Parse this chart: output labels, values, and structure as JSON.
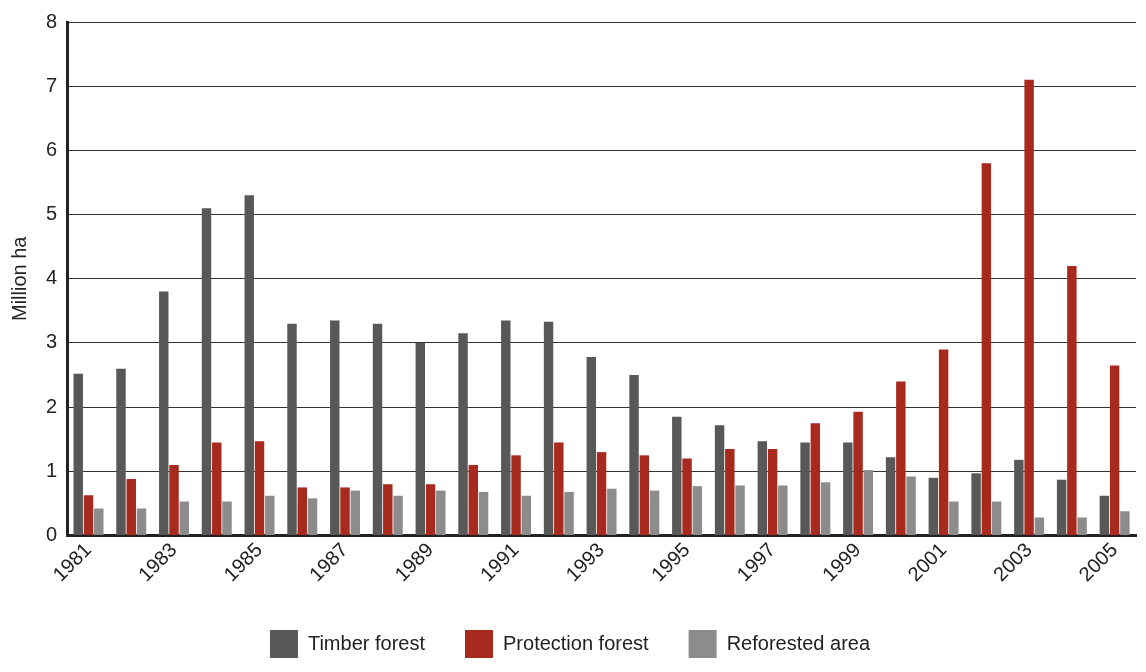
{
  "chart_data": {
    "type": "bar",
    "ylabel": "Million ha",
    "categories": [
      "1981",
      null,
      "1983",
      null,
      "1985",
      null,
      "1987",
      null,
      "1989",
      null,
      "1991",
      null,
      "1993",
      null,
      "1995",
      null,
      "1997",
      null,
      "1999",
      null,
      "2001",
      null,
      "2003",
      null,
      "2005"
    ],
    "series": [
      {
        "name": "Timber forest",
        "color": "#585858",
        "values": [
          2.52,
          2.6,
          3.8,
          5.1,
          5.3,
          3.3,
          3.35,
          3.3,
          3.0,
          3.15,
          3.35,
          3.33,
          2.78,
          2.5,
          1.85,
          1.72,
          1.47,
          1.45,
          1.45,
          1.22,
          0.9,
          0.97,
          1.18,
          0.87,
          0.62
        ]
      },
      {
        "name": "Protection forest",
        "color": "#a82a1e",
        "values": [
          0.63,
          0.88,
          1.1,
          1.45,
          1.47,
          0.75,
          0.75,
          0.8,
          0.8,
          1.1,
          1.25,
          1.45,
          1.3,
          1.25,
          1.2,
          1.35,
          1.35,
          1.75,
          1.93,
          2.4,
          2.9,
          5.8,
          7.1,
          4.2,
          2.65
        ]
      },
      {
        "name": "Reforested area",
        "color": "#8c8c8c",
        "values": [
          0.42,
          0.42,
          0.53,
          0.53,
          0.62,
          0.58,
          0.7,
          0.62,
          0.7,
          0.68,
          0.62,
          0.68,
          0.73,
          0.7,
          0.77,
          0.78,
          0.78,
          0.83,
          1.02,
          0.92,
          0.53,
          0.53,
          0.28,
          0.28,
          0.38
        ]
      }
    ],
    "ylim": [
      0,
      8
    ],
    "yticks": [
      0,
      1,
      2,
      3,
      4,
      5,
      6,
      7,
      8
    ],
    "grid": "y",
    "legend": "bottom"
  }
}
